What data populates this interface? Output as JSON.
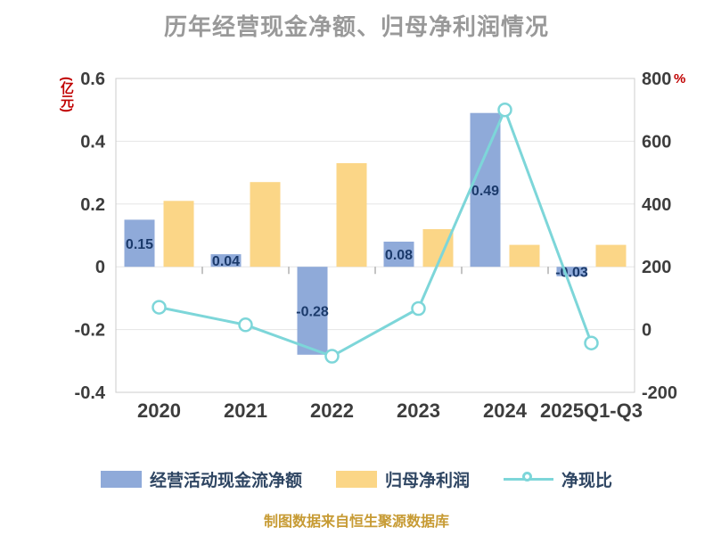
{
  "chart_data": {
    "type": "bar+line",
    "title": "历年经营现金净额、归母净利润情况",
    "categories": [
      "2020",
      "2021",
      "2022",
      "2023",
      "2024",
      "2025Q1-Q3"
    ],
    "series": [
      {
        "name": "经营活动现金流净额",
        "type": "bar",
        "axis": "left",
        "color": "#8FAAD9",
        "values": [
          0.15,
          0.04,
          -0.28,
          0.08,
          0.49,
          -0.03
        ],
        "labels": [
          "0.15",
          "0.04",
          "-0.28",
          "0.08",
          "0.49",
          "-0.03"
        ],
        "label_color": "#1B3A6B"
      },
      {
        "name": "归母净利润",
        "type": "bar",
        "axis": "left",
        "color": "#FBD687",
        "values": [
          0.21,
          0.27,
          0.33,
          0.12,
          0.07,
          0.07
        ]
      },
      {
        "name": "净现比",
        "type": "line",
        "axis": "right",
        "color": "#7DD6D9",
        "marker": "circle",
        "values": [
          71,
          15,
          -85,
          67,
          700,
          -43
        ]
      }
    ],
    "left_axis": {
      "unit": "(亿元)",
      "unit_color": "#C00000",
      "min": -0.4,
      "max": 0.6,
      "ticks": [
        0.6,
        0.4,
        0.2,
        0,
        -0.2,
        -0.4
      ]
    },
    "right_axis": {
      "unit": "%",
      "unit_color": "#C00000",
      "min": -200,
      "max": 800,
      "ticks": [
        800,
        600,
        400,
        200,
        0,
        -200
      ]
    },
    "grid": true,
    "legend_position": "bottom"
  },
  "legend": {
    "items": [
      {
        "label": "经营活动现金流净额",
        "swatch": "bar",
        "color": "#8FAAD9"
      },
      {
        "label": "归母净利润",
        "swatch": "bar",
        "color": "#FBD687"
      },
      {
        "label": "净现比",
        "swatch": "line",
        "color": "#7DD6D9"
      }
    ]
  },
  "source_note": "制图数据来自恒生聚源数据库",
  "colors": {
    "title": "#999999",
    "axis_tick_label": "#3D3D3D",
    "grid": "#E5E5E5",
    "border": "#CCCCCC",
    "legend_label": "#2F4663",
    "source_note": "#C79B34",
    "background": "#FFFFFF"
  }
}
